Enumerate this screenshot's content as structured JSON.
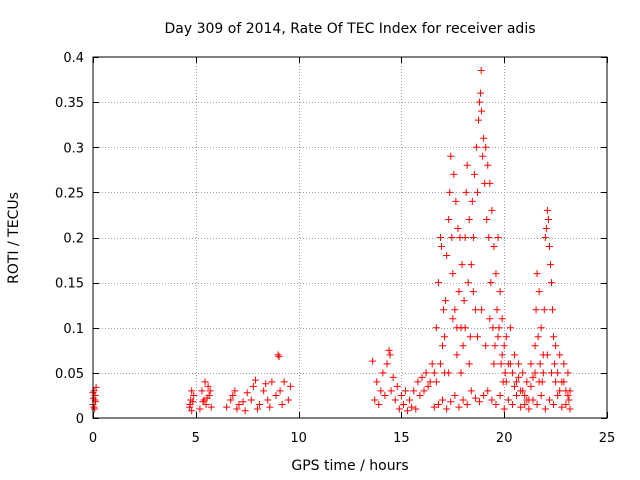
{
  "chart_data": {
    "type": "scatter",
    "title": "Day 309 of 2014, Rate Of TEC Index for receiver adis",
    "xlabel": "GPS time / hours",
    "ylabel": "ROTI / TECUs",
    "xlim": [
      0,
      25
    ],
    "ylim": [
      0,
      0.4
    ],
    "x_ticks": [
      {
        "value": 0,
        "label": "0"
      },
      {
        "value": 5,
        "label": "5"
      },
      {
        "value": 10,
        "label": "10"
      },
      {
        "value": 15,
        "label": "15"
      },
      {
        "value": 20,
        "label": "20"
      },
      {
        "value": 25,
        "label": "25"
      }
    ],
    "y_ticks": [
      {
        "value": 0,
        "label": "0"
      },
      {
        "value": 0.05,
        "label": "0.05"
      },
      {
        "value": 0.1,
        "label": "0.1"
      },
      {
        "value": 0.15,
        "label": "0.15"
      },
      {
        "value": 0.2,
        "label": "0.2"
      },
      {
        "value": 0.25,
        "label": "0.25"
      },
      {
        "value": 0.3,
        "label": "0.3"
      },
      {
        "value": 0.35,
        "label": "0.35"
      },
      {
        "value": 0.4,
        "label": "0.4"
      }
    ],
    "grid": true,
    "marker": "+",
    "marker_color": "#ff0000",
    "series": [
      {
        "name": "ROTI",
        "points": [
          [
            0.0,
            0.015
          ],
          [
            0.02,
            0.022
          ],
          [
            0.05,
            0.03
          ],
          [
            0.08,
            0.01
          ],
          [
            0.1,
            0.025
          ],
          [
            0.12,
            0.018
          ],
          [
            0.15,
            0.034
          ],
          [
            0.0,
            0.028
          ],
          [
            0.1,
            0.02
          ],
          [
            0.05,
            0.012
          ],
          [
            4.7,
            0.012
          ],
          [
            4.75,
            0.02
          ],
          [
            4.8,
            0.03
          ],
          [
            4.85,
            0.018
          ],
          [
            4.9,
            0.025
          ],
          [
            4.72,
            0.015
          ],
          [
            4.8,
            0.008
          ],
          [
            5.2,
            0.01
          ],
          [
            5.3,
            0.03
          ],
          [
            5.4,
            0.02
          ],
          [
            5.45,
            0.04
          ],
          [
            5.5,
            0.015
          ],
          [
            5.6,
            0.035
          ],
          [
            5.65,
            0.025
          ],
          [
            5.7,
            0.03
          ],
          [
            5.75,
            0.012
          ],
          [
            5.55,
            0.022
          ],
          [
            5.35,
            0.018
          ],
          [
            6.5,
            0.012
          ],
          [
            6.7,
            0.02
          ],
          [
            6.9,
            0.03
          ],
          [
            7.1,
            0.015
          ],
          [
            7.3,
            0.018
          ],
          [
            7.5,
            0.028
          ],
          [
            7.7,
            0.02
          ],
          [
            7.9,
            0.042
          ],
          [
            8.1,
            0.015
          ],
          [
            8.3,
            0.03
          ],
          [
            8.5,
            0.02
          ],
          [
            8.7,
            0.04
          ],
          [
            8.9,
            0.025
          ],
          [
            9.0,
            0.07
          ],
          [
            9.05,
            0.068
          ],
          [
            9.1,
            0.03
          ],
          [
            9.3,
            0.04
          ],
          [
            9.5,
            0.02
          ],
          [
            9.6,
            0.035
          ],
          [
            7.0,
            0.01
          ],
          [
            7.4,
            0.008
          ],
          [
            8.0,
            0.01
          ],
          [
            8.6,
            0.012
          ],
          [
            9.2,
            0.015
          ],
          [
            6.8,
            0.025
          ],
          [
            7.8,
            0.035
          ],
          [
            8.4,
            0.038
          ],
          [
            13.6,
            0.063
          ],
          [
            13.7,
            0.02
          ],
          [
            13.8,
            0.04
          ],
          [
            13.9,
            0.015
          ],
          [
            14.0,
            0.03
          ],
          [
            14.1,
            0.05
          ],
          [
            14.2,
            0.025
          ],
          [
            14.3,
            0.06
          ],
          [
            14.4,
            0.075
          ],
          [
            14.45,
            0.07
          ],
          [
            14.5,
            0.03
          ],
          [
            14.6,
            0.045
          ],
          [
            14.7,
            0.02
          ],
          [
            14.8,
            0.035
          ],
          [
            14.9,
            0.01
          ],
          [
            15.0,
            0.025
          ],
          [
            15.1,
            0.015
          ],
          [
            15.2,
            0.03
          ],
          [
            15.3,
            0.008
          ],
          [
            15.4,
            0.02
          ],
          [
            15.5,
            0.012
          ],
          [
            15.6,
            0.03
          ],
          [
            15.7,
            0.01
          ],
          [
            15.8,
            0.04
          ],
          [
            15.9,
            0.025
          ],
          [
            16.0,
            0.045
          ],
          [
            16.1,
            0.03
          ],
          [
            16.2,
            0.05
          ],
          [
            16.3,
            0.035
          ],
          [
            16.4,
            0.04
          ],
          [
            16.5,
            0.06
          ],
          [
            16.6,
            0.05
          ],
          [
            16.7,
            0.1
          ],
          [
            16.8,
            0.15
          ],
          [
            16.9,
            0.2
          ],
          [
            16.95,
            0.19
          ],
          [
            17.0,
            0.08
          ],
          [
            17.05,
            0.12
          ],
          [
            17.1,
            0.05
          ],
          [
            17.15,
            0.13
          ],
          [
            17.2,
            0.18
          ],
          [
            17.3,
            0.22
          ],
          [
            17.35,
            0.25
          ],
          [
            17.4,
            0.29
          ],
          [
            17.45,
            0.2
          ],
          [
            17.5,
            0.16
          ],
          [
            17.55,
            0.27
          ],
          [
            17.6,
            0.12
          ],
          [
            17.65,
            0.24
          ],
          [
            17.7,
            0.1
          ],
          [
            17.75,
            0.21
          ],
          [
            17.8,
            0.14
          ],
          [
            17.85,
            0.2
          ],
          [
            17.9,
            0.1
          ],
          [
            17.95,
            0.17
          ],
          [
            18.0,
            0.08
          ],
          [
            18.05,
            0.13
          ],
          [
            18.1,
            0.2
          ],
          [
            18.15,
            0.25
          ],
          [
            18.2,
            0.28
          ],
          [
            18.25,
            0.15
          ],
          [
            18.3,
            0.22
          ],
          [
            18.35,
            0.09
          ],
          [
            18.4,
            0.17
          ],
          [
            18.45,
            0.24
          ],
          [
            18.5,
            0.2
          ],
          [
            18.55,
            0.27
          ],
          [
            18.6,
            0.12
          ],
          [
            18.65,
            0.3
          ],
          [
            18.7,
            0.25
          ],
          [
            18.75,
            0.33
          ],
          [
            18.8,
            0.35
          ],
          [
            18.85,
            0.36
          ],
          [
            18.88,
            0.385
          ],
          [
            18.9,
            0.34
          ],
          [
            18.95,
            0.29
          ],
          [
            19.0,
            0.31
          ],
          [
            19.05,
            0.26
          ],
          [
            19.1,
            0.3
          ],
          [
            19.15,
            0.22
          ],
          [
            19.2,
            0.28
          ],
          [
            19.25,
            0.2
          ],
          [
            19.3,
            0.26
          ],
          [
            19.35,
            0.15
          ],
          [
            19.4,
            0.23
          ],
          [
            19.45,
            0.1
          ],
          [
            19.5,
            0.19
          ],
          [
            19.55,
            0.08
          ],
          [
            19.6,
            0.16
          ],
          [
            19.65,
            0.12
          ],
          [
            19.7,
            0.2
          ],
          [
            19.75,
            0.1
          ],
          [
            19.8,
            0.14
          ],
          [
            19.85,
            0.06
          ],
          [
            19.9,
            0.11
          ],
          [
            19.95,
            0.04
          ],
          [
            20.0,
            0.08
          ],
          [
            20.05,
            0.05
          ],
          [
            20.1,
            0.09
          ],
          [
            20.2,
            0.06
          ],
          [
            20.3,
            0.1
          ],
          [
            20.4,
            0.05
          ],
          [
            20.5,
            0.07
          ],
          [
            20.6,
            0.04
          ],
          [
            20.7,
            0.06
          ],
          [
            20.8,
            0.03
          ],
          [
            20.9,
            0.05
          ],
          [
            21.0,
            0.025
          ],
          [
            21.1,
            0.04
          ],
          [
            21.2,
            0.02
          ],
          [
            21.3,
            0.035
          ],
          [
            21.4,
            0.045
          ],
          [
            21.5,
            0.08
          ],
          [
            21.55,
            0.12
          ],
          [
            21.6,
            0.16
          ],
          [
            21.65,
            0.09
          ],
          [
            21.7,
            0.14
          ],
          [
            21.75,
            0.06
          ],
          [
            21.8,
            0.1
          ],
          [
            21.85,
            0.04
          ],
          [
            21.9,
            0.07
          ],
          [
            21.95,
            0.12
          ],
          [
            22.0,
            0.2
          ],
          [
            22.05,
            0.21
          ],
          [
            22.1,
            0.23
          ],
          [
            22.15,
            0.22
          ],
          [
            22.2,
            0.19
          ],
          [
            22.25,
            0.17
          ],
          [
            22.3,
            0.15
          ],
          [
            22.35,
            0.12
          ],
          [
            22.4,
            0.09
          ],
          [
            22.45,
            0.06
          ],
          [
            22.5,
            0.08
          ],
          [
            22.6,
            0.05
          ],
          [
            22.7,
            0.07
          ],
          [
            22.8,
            0.04
          ],
          [
            22.9,
            0.06
          ],
          [
            23.0,
            0.03
          ],
          [
            23.1,
            0.05
          ],
          [
            23.15,
            0.02
          ],
          [
            23.2,
            0.03
          ],
          [
            16.6,
            0.012
          ],
          [
            16.8,
            0.015
          ],
          [
            17.0,
            0.02
          ],
          [
            17.2,
            0.01
          ],
          [
            17.4,
            0.018
          ],
          [
            17.6,
            0.025
          ],
          [
            17.8,
            0.012
          ],
          [
            18.0,
            0.02
          ],
          [
            18.2,
            0.015
          ],
          [
            18.4,
            0.03
          ],
          [
            18.6,
            0.022
          ],
          [
            18.8,
            0.018
          ],
          [
            19.0,
            0.025
          ],
          [
            19.2,
            0.03
          ],
          [
            19.4,
            0.02
          ],
          [
            19.6,
            0.015
          ],
          [
            19.8,
            0.025
          ],
          [
            20.0,
            0.01
          ],
          [
            20.2,
            0.02
          ],
          [
            20.4,
            0.015
          ],
          [
            20.6,
            0.025
          ],
          [
            20.8,
            0.012
          ],
          [
            21.0,
            0.015
          ],
          [
            21.2,
            0.01
          ],
          [
            21.4,
            0.02
          ],
          [
            21.6,
            0.015
          ],
          [
            21.8,
            0.025
          ],
          [
            22.0,
            0.01
          ],
          [
            22.2,
            0.02
          ],
          [
            22.4,
            0.015
          ],
          [
            22.6,
            0.025
          ],
          [
            22.8,
            0.012
          ],
          [
            23.0,
            0.015
          ],
          [
            23.2,
            0.01
          ],
          [
            16.7,
            0.04
          ],
          [
            16.9,
            0.06
          ],
          [
            17.1,
            0.09
          ],
          [
            17.3,
            0.05
          ],
          [
            17.5,
            0.11
          ],
          [
            17.7,
            0.07
          ],
          [
            17.9,
            0.05
          ],
          [
            18.1,
            0.1
          ],
          [
            18.3,
            0.06
          ],
          [
            18.5,
            0.14
          ],
          [
            18.7,
            0.09
          ],
          [
            18.9,
            0.12
          ],
          [
            19.1,
            0.08
          ],
          [
            19.3,
            0.11
          ],
          [
            19.5,
            0.06
          ],
          [
            19.7,
            0.09
          ],
          [
            19.9,
            0.07
          ],
          [
            20.1,
            0.04
          ],
          [
            20.3,
            0.06
          ],
          [
            20.5,
            0.035
          ],
          [
            20.7,
            0.045
          ],
          [
            20.9,
            0.03
          ],
          [
            21.1,
            0.02
          ],
          [
            21.3,
            0.06
          ],
          [
            21.5,
            0.05
          ],
          [
            21.7,
            0.04
          ],
          [
            21.9,
            0.05
          ],
          [
            22.1,
            0.07
          ],
          [
            22.3,
            0.05
          ],
          [
            22.5,
            0.04
          ],
          [
            22.7,
            0.03
          ],
          [
            22.9,
            0.04
          ],
          [
            23.1,
            0.025
          ]
        ]
      }
    ]
  }
}
